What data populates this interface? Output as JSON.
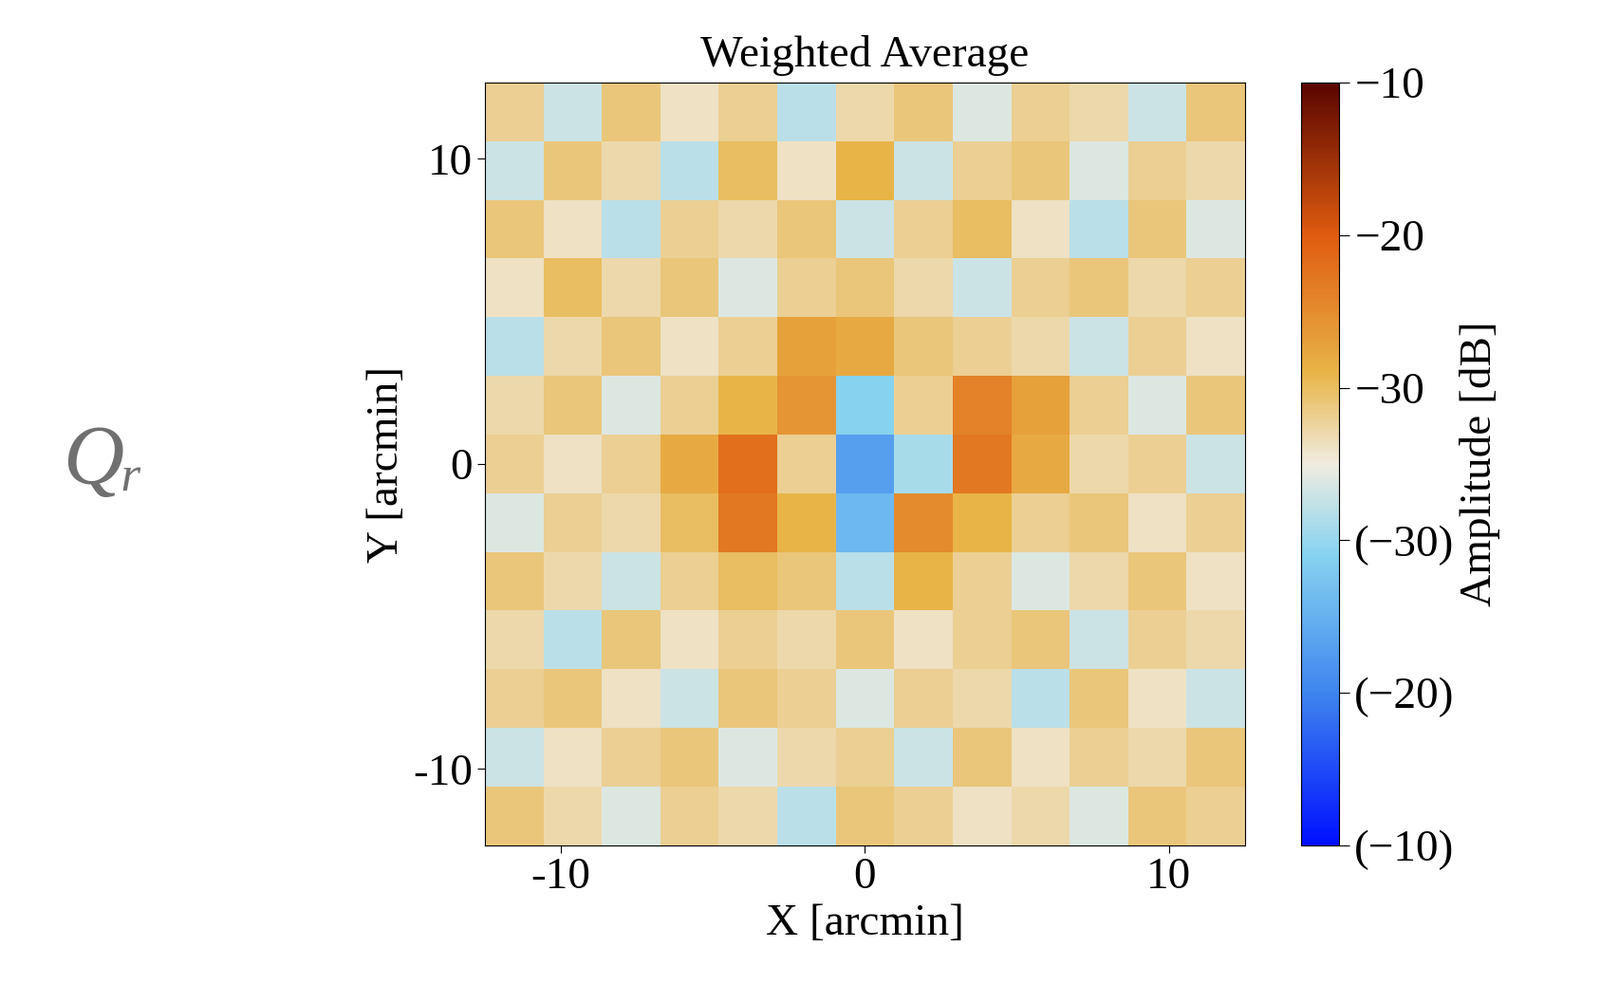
{
  "chart_data": {
    "type": "heatmap",
    "title": "Weighted Average",
    "x_label": "X [arcmin]",
    "y_label": "Y [arcmin]",
    "annotation": "Qᵣ",
    "xlim": [
      -12.5,
      12.5
    ],
    "ylim": [
      -12.5,
      12.5
    ],
    "xticks": [
      -10,
      0,
      10
    ],
    "yticks": [
      -10,
      0,
      10
    ],
    "cells": [
      [
        3,
        -2,
        4,
        1,
        3,
        -3,
        2,
        4,
        -1,
        3,
        2,
        -2,
        4
      ],
      [
        -2,
        4,
        2,
        -3,
        5,
        1,
        6,
        -2,
        3,
        4,
        -1,
        3,
        2
      ],
      [
        4,
        1,
        -3,
        3,
        2,
        4,
        -2,
        3,
        5,
        1,
        -3,
        4,
        -1
      ],
      [
        1,
        5,
        2,
        4,
        -1,
        3,
        4,
        2,
        -2,
        3,
        4,
        2,
        3
      ],
      [
        -3,
        2,
        4,
        1,
        3,
        8,
        7,
        4,
        3,
        2,
        -2,
        3,
        1
      ],
      [
        2,
        4,
        -1,
        3,
        6,
        9,
        -6,
        3,
        11,
        8,
        3,
        -1,
        4
      ],
      [
        3,
        1,
        3,
        7,
        13,
        3,
        -12,
        -4,
        12,
        7,
        2,
        3,
        -2
      ],
      [
        -1,
        3,
        2,
        5,
        12,
        6,
        -9,
        10,
        6,
        3,
        4,
        1,
        3
      ],
      [
        4,
        2,
        -2,
        3,
        5,
        4,
        -3,
        6,
        3,
        -1,
        2,
        4,
        1
      ],
      [
        2,
        -3,
        4,
        1,
        3,
        2,
        4,
        1,
        3,
        4,
        -2,
        3,
        2
      ],
      [
        3,
        4,
        1,
        -2,
        4,
        3,
        -1,
        3,
        2,
        -3,
        4,
        1,
        -2
      ],
      [
        -2,
        1,
        3,
        4,
        -1,
        2,
        3,
        -2,
        4,
        1,
        3,
        2,
        4
      ],
      [
        4,
        2,
        -1,
        3,
        2,
        -3,
        4,
        3,
        1,
        2,
        -1,
        4,
        3
      ]
    ],
    "colorbar": {
      "label": "Amplitude [dB]",
      "range": [
        -25,
        25
      ],
      "ticks": [
        {
          "value": 25,
          "label": "−10"
        },
        {
          "value": 15,
          "label": "−20"
        },
        {
          "value": 5,
          "label": "−30"
        },
        {
          "value": -5,
          "label": "(−30)"
        },
        {
          "value": -15,
          "label": "(−20)"
        },
        {
          "value": -25,
          "label": "(−10)"
        }
      ]
    }
  }
}
